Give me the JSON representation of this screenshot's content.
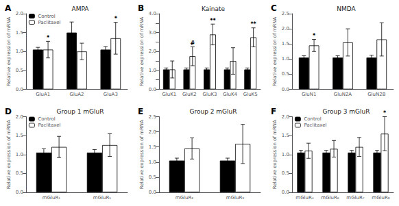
{
  "chart_data": [
    {
      "type": "bar",
      "title": "AMPA",
      "annotations": [
        {
          "text": "A"
        }
      ],
      "ylabel": "Relative expression of mRNA",
      "categories": [
        "GluA1",
        "GluA2",
        "GluA3"
      ],
      "series": [
        {
          "name": "Control",
          "color": "black",
          "values": [
            1.05,
            1.5,
            1.05
          ],
          "errors": [
            0.06,
            0.28,
            0.08
          ]
        },
        {
          "name": "Paclitaxel",
          "color": "white",
          "values": [
            1.05,
            1.0,
            1.35
          ],
          "errors": [
            0.22,
            0.22,
            0.42
          ],
          "annotations": [
            "*",
            null,
            "*"
          ]
        }
      ],
      "ylim": [
        0,
        2
      ],
      "yticks": [
        {
          "value": 0,
          "label": "0.0"
        },
        0.5,
        {
          "value": 1,
          "label": "1.0"
        },
        1.5,
        {
          "value": 2,
          "label": "2.0"
        }
      ],
      "grid": false,
      "legend": "upper left"
    },
    {
      "type": "bar",
      "title": "Kainate",
      "annotations": [
        {
          "text": "B"
        }
      ],
      "ylabel": "Relative expression of mRNA",
      "categories": [
        "GluK1",
        "GluK2",
        "GluK3",
        "GluK4",
        "GluK5"
      ],
      "series": [
        {
          "name": "Control",
          "color": "black",
          "values": [
            1.05,
            1.05,
            1.05,
            1.05,
            1.05
          ],
          "errors": [
            0.08,
            0.08,
            0.08,
            0.08,
            0.08
          ]
        },
        {
          "name": "Paclitaxel",
          "color": "white",
          "values": [
            1.05,
            1.75,
            2.9,
            1.5,
            2.75
          ],
          "errors": [
            0.45,
            0.5,
            0.55,
            0.7,
            0.5
          ],
          "annotations": [
            null,
            "#",
            "**",
            null,
            "**"
          ]
        }
      ],
      "ylim": [
        0,
        4
      ],
      "yticks": [
        {
          "value": 0,
          "label": "0.0"
        },
        {
          "value": 0.5,
          "label": null
        },
        {
          "value": 1,
          "label": "1.0"
        },
        {
          "value": 1.5,
          "label": null
        },
        {
          "value": 2,
          "label": "2.0"
        },
        {
          "value": 2.5,
          "label": null
        },
        {
          "value": 3,
          "label": "3.0"
        },
        {
          "value": 3.5,
          "label": null
        },
        {
          "value": 4,
          "label": "4.0"
        }
      ],
      "grid": false
    },
    {
      "type": "bar",
      "title": "NMDA",
      "annotations": [
        {
          "text": "C"
        }
      ],
      "ylabel": "Relative expression of mRNA",
      "categories": [
        "GluN1",
        "GluN2A",
        "GluN2B"
      ],
      "series": [
        {
          "name": "Control",
          "color": "black",
          "values": [
            1.05,
            1.05,
            1.05
          ],
          "errors": [
            0.06,
            0.06,
            0.08
          ]
        },
        {
          "name": "Paclitaxel",
          "color": "white",
          "values": [
            1.45,
            1.55,
            1.65
          ],
          "errors": [
            0.2,
            0.45,
            0.55
          ],
          "annotations": [
            "*",
            null,
            null
          ]
        }
      ],
      "ylim": [
        0,
        2.5
      ],
      "yticks": [
        {
          "value": 0,
          "label": "0.0"
        },
        0.5,
        {
          "value": 1,
          "label": "1.0"
        },
        1.5,
        {
          "value": 2,
          "label": "2.0"
        },
        2.5
      ],
      "grid": false
    },
    {
      "type": "bar",
      "title": "Group 1 mGluR",
      "annotations": [
        {
          "text": "D"
        }
      ],
      "ylabel": "Relative expression of mRNA",
      "categories": [
        "mGluR₁",
        "mGluR₅"
      ],
      "series": [
        {
          "name": "Control",
          "color": "black",
          "values": [
            1.05,
            1.05
          ],
          "errors": [
            0.1,
            0.08
          ]
        },
        {
          "name": "Paclitaxel",
          "color": "white",
          "values": [
            1.2,
            1.25
          ],
          "errors": [
            0.28,
            0.3
          ]
        }
      ],
      "ylim": [
        0,
        2
      ],
      "yticks": [
        {
          "value": 0,
          "label": "0.0"
        },
        0.5,
        {
          "value": 1,
          "label": "1.0"
        },
        1.5,
        {
          "value": 2,
          "label": "2.0"
        }
      ],
      "grid": false,
      "legend": "upper left"
    },
    {
      "type": "bar",
      "title": "Group 2 mGluR",
      "annotations": [
        {
          "text": "E"
        }
      ],
      "ylabel": "Relative expression of mRNA",
      "categories": [
        "mGluR₂",
        "mGluR₃"
      ],
      "series": [
        {
          "name": "Control",
          "color": "black",
          "values": [
            1.05,
            1.05
          ],
          "errors": [
            0.08,
            0.08
          ]
        },
        {
          "name": "Paclitaxel",
          "color": "white",
          "values": [
            1.45,
            1.6
          ],
          "errors": [
            0.35,
            0.65
          ]
        }
      ],
      "ylim": [
        0,
        2.5
      ],
      "yticks": [
        {
          "value": 0,
          "label": "0.0"
        },
        0.5,
        {
          "value": 1,
          "label": "1.0"
        },
        1.5,
        {
          "value": 2,
          "label": "2.0"
        },
        2.5
      ],
      "grid": false
    },
    {
      "type": "bar",
      "title": "Group 3 mGluR",
      "annotations": [
        {
          "text": "F"
        }
      ],
      "ylabel": "Relative expression of mRNA",
      "categories": [
        "mGluR₄",
        "mGluR₆",
        "mGluR₇",
        "mGluR₈"
      ],
      "series": [
        {
          "name": "Control",
          "color": "black",
          "values": [
            1.05,
            1.05,
            1.05,
            1.05
          ],
          "errors": [
            0.06,
            0.06,
            0.06,
            0.06
          ]
        },
        {
          "name": "Paclitaxel",
          "color": "white",
          "values": [
            1.1,
            1.15,
            1.2,
            1.55
          ],
          "errors": [
            0.2,
            0.22,
            0.25,
            0.45
          ],
          "annotations": [
            null,
            null,
            null,
            "*"
          ]
        }
      ],
      "ylim": [
        0,
        2
      ],
      "yticks": [
        {
          "value": 0,
          "label": "0.0"
        },
        0.5,
        {
          "value": 1,
          "label": "1.0"
        },
        1.5,
        {
          "value": 2,
          "label": "2.0"
        }
      ],
      "grid": false,
      "legend": "upper left"
    }
  ]
}
